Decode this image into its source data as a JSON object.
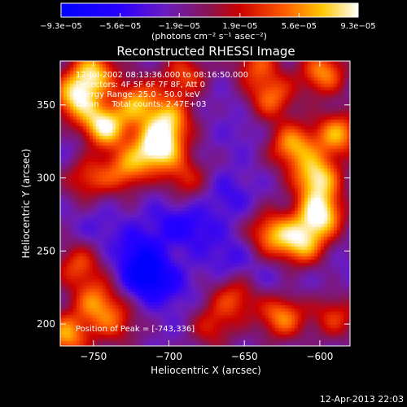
{
  "chart_data": {
    "type": "heatmap",
    "title": "Reconstructed RHESSI Image",
    "xlabel": "Heliocentric X (arcsec)",
    "ylabel": "Heliocentric Y (arcsec)",
    "xlim": [
      -772,
      -580
    ],
    "ylim": [
      185,
      380
    ],
    "x_ticks": [
      -750,
      -700,
      -650,
      -600
    ],
    "x_tick_labels": [
      "−750",
      "−700",
      "−650",
      "−600"
    ],
    "y_ticks": [
      200,
      250,
      300,
      350
    ],
    "y_tick_labels": [
      "200",
      "250",
      "300",
      "350"
    ],
    "colorbar": {
      "range": [
        -9.3e-05,
        9.3e-05
      ],
      "ticks": [
        -9.3e-05,
        -5.6e-05,
        -1.9e-05,
        1.9e-05,
        5.6e-05,
        9.3e-05
      ],
      "tick_labels": [
        "−9.3e−05",
        "−5.6e−05",
        "−1.9e−05",
        "1.9e−05",
        "5.6e−05",
        "9.3e−05"
      ],
      "units": "(photons cm⁻² s⁻¹ asec⁻²)"
    },
    "annotations": [
      "12-Jul-2002 08:13:36.000 to 08:16:50.000",
      "Detectors: 4F 5F 6F 7F 8F, Att 0",
      "Energy Range: 25.0 - 50.0 keV",
      "Clean     Total counts: 2.47E+03"
    ],
    "peak_label": "Position of Peak = [-743,336]",
    "peak": [
      -743,
      336
    ],
    "blobs": [
      {
        "x": -743,
        "y": 336,
        "v": 9.3e-05
      },
      {
        "x": -762,
        "y": 355,
        "v": 7.2e-05
      },
      {
        "x": -750,
        "y": 372,
        "v": 6.8e-05
      },
      {
        "x": -722,
        "y": 352,
        "v": 6e-05
      },
      {
        "x": -700,
        "y": 340,
        "v": 5.6e-05
      },
      {
        "x": -705,
        "y": 322,
        "v": 5e-05
      },
      {
        "x": -728,
        "y": 305,
        "v": 4.6e-05
      },
      {
        "x": -754,
        "y": 300,
        "v": 3.4e-05
      },
      {
        "x": -690,
        "y": 370,
        "v": 3.6e-05
      },
      {
        "x": -690,
        "y": 300,
        "v": 2.6e-05
      },
      {
        "x": -760,
        "y": 240,
        "v": 3.6e-05
      },
      {
        "x": -748,
        "y": 215,
        "v": 4.6e-05
      },
      {
        "x": -768,
        "y": 192,
        "v": 6e-05
      },
      {
        "x": -735,
        "y": 200,
        "v": 2.4e-05
      },
      {
        "x": -712,
        "y": 318,
        "v": 3e-05
      },
      {
        "x": -642,
        "y": 378,
        "v": 3.4e-05
      },
      {
        "x": -632,
        "y": 355,
        "v": 4.4e-05
      },
      {
        "x": -618,
        "y": 322,
        "v": 6e-05
      },
      {
        "x": -602,
        "y": 300,
        "v": 7.8e-05
      },
      {
        "x": -600,
        "y": 275,
        "v": 8.6e-05
      },
      {
        "x": -612,
        "y": 255,
        "v": 6.4e-05
      },
      {
        "x": -632,
        "y": 262,
        "v": 5.2e-05
      },
      {
        "x": -588,
        "y": 330,
        "v": 6e-05
      },
      {
        "x": -598,
        "y": 372,
        "v": 5.6e-05
      },
      {
        "x": -625,
        "y": 205,
        "v": 5.4e-05
      },
      {
        "x": -656,
        "y": 218,
        "v": 3.4e-05
      },
      {
        "x": -590,
        "y": 205,
        "v": 3e-05
      },
      {
        "x": -672,
        "y": 198,
        "v": 2.4e-05
      },
      {
        "x": -715,
        "y": 233,
        "v": -9.3e-05
      },
      {
        "x": -720,
        "y": 250,
        "v": -6e-05
      },
      {
        "x": -682,
        "y": 265,
        "v": -5.2e-05
      },
      {
        "x": -700,
        "y": 270,
        "v": -4.8e-05
      },
      {
        "x": -660,
        "y": 288,
        "v": -4.8e-05
      },
      {
        "x": -660,
        "y": 245,
        "v": -4.8e-05
      },
      {
        "x": -698,
        "y": 225,
        "v": -4.4e-05
      },
      {
        "x": -745,
        "y": 265,
        "v": -4e-05
      },
      {
        "x": -737,
        "y": 350,
        "v": -4.4e-05
      },
      {
        "x": -712,
        "y": 300,
        "v": -3.4e-05
      },
      {
        "x": -650,
        "y": 330,
        "v": -3.4e-05
      },
      {
        "x": -665,
        "y": 355,
        "v": -3e-05
      },
      {
        "x": -635,
        "y": 230,
        "v": -3.6e-05
      },
      {
        "x": -690,
        "y": 200,
        "v": -3e-05
      },
      {
        "x": -760,
        "y": 320,
        "v": -3.6e-05
      },
      {
        "x": -582,
        "y": 240,
        "v": -3e-05
      },
      {
        "x": -610,
        "y": 225,
        "v": -2.8e-05
      }
    ],
    "grid": false
  },
  "timestamp": "12-Apr-2013 22:03"
}
